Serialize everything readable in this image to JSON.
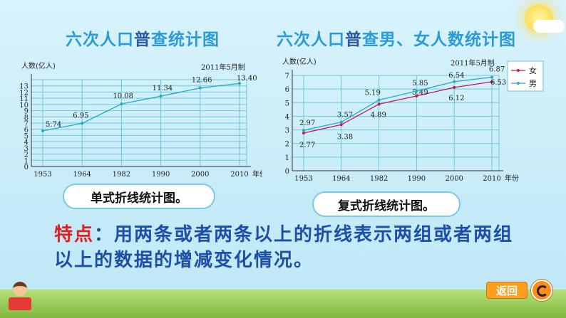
{
  "page": {
    "title_left": {
      "part1": "六次人口",
      "part2": "普",
      "part3": "查统计图"
    },
    "title_right": {
      "part1": "六次人口",
      "part2": "普",
      "part3": "查男、女人数统计图"
    },
    "bubble_left": "单式折线统计图。",
    "bubble_right": "复式折线统计图。",
    "feature_label": "特点",
    "feature_text": "：用两条或者两条以上的折线表示两组或者两组以上的数据的增减变化情况。",
    "return_label": "返回"
  },
  "chart_data": [
    {
      "type": "line",
      "ylabel": "人数(亿人)",
      "xlabel": "年份",
      "note": "2011年5月制",
      "x": [
        "1953",
        "1964",
        "1982",
        "1990",
        "2000",
        "2010"
      ],
      "ylim": [
        0,
        14
      ],
      "yticks": [
        0,
        1,
        2,
        3,
        4,
        5,
        6,
        7,
        8,
        9,
        10,
        11,
        12,
        13
      ],
      "grid": true,
      "series": [
        {
          "values": [
            5.74,
            6.95,
            10.08,
            11.34,
            12.66,
            13.4
          ],
          "labels": [
            "5.74",
            "6.95",
            "10.08",
            "11.34",
            "12.66",
            "13.40"
          ],
          "color": "#29a9c6"
        }
      ]
    },
    {
      "type": "line",
      "ylabel": "人数(亿人)",
      "xlabel": "年份",
      "note": "2011年5月制",
      "x": [
        "1953",
        "1964",
        "1982",
        "1990",
        "2000",
        "2010"
      ],
      "ylim": [
        0,
        7
      ],
      "yticks": [
        0,
        1,
        2,
        3,
        4,
        5,
        6,
        7
      ],
      "grid": true,
      "legend": "top-right",
      "series": [
        {
          "name": "女",
          "values": [
            2.77,
            3.38,
            4.89,
            5.49,
            6.12,
            6.53
          ],
          "labels": [
            "2.77",
            "3.38",
            "4.89",
            "5.49",
            "6.12",
            "6.53"
          ],
          "color": "#c2185b"
        },
        {
          "name": "男",
          "values": [
            2.97,
            3.57,
            5.19,
            5.85,
            6.54,
            6.87
          ],
          "labels": [
            "2.97",
            "3.57",
            "5.19",
            "5.85",
            "6.54",
            "6.87"
          ],
          "color": "#29a9c6"
        }
      ]
    }
  ]
}
